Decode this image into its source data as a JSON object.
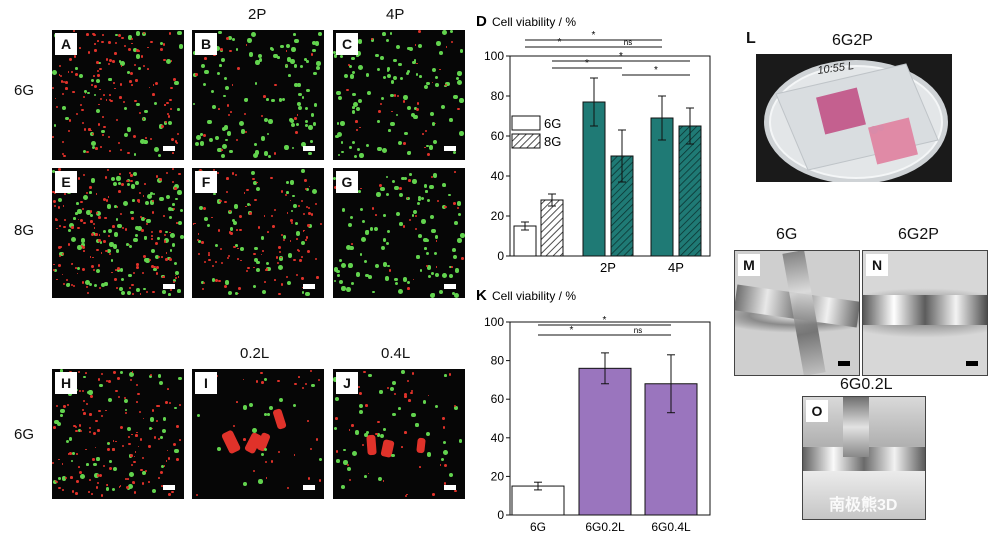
{
  "col_headers": {
    "p2": "2P",
    "p4": "4P",
    "l02": "0.2L",
    "l04": "0.4L"
  },
  "row_labels": {
    "r1": "6G",
    "r2": "8G",
    "r3": "6G"
  },
  "panels": {
    "A": "A",
    "B": "B",
    "C": "C",
    "E": "E",
    "F": "F",
    "G": "G",
    "H": "H",
    "I": "I",
    "J": "J",
    "M": "M",
    "N": "N",
    "O": "O"
  },
  "right": {
    "L_letter": "L",
    "L_title": "6G2P",
    "dish_label": "10:55 L",
    "M_title": "6G",
    "N_title": "6G2P",
    "O_title": "6G0.2L",
    "watermark": "南极熊3D"
  },
  "colors": {
    "teal": "#1f7a75",
    "purple": "#9a75be",
    "bg": "#060606",
    "red": "#e0322a",
    "green": "#62d34e"
  },
  "chart_data": [
    {
      "panel": "D",
      "type": "bar",
      "title": "Cell viability / %",
      "categories": [
        "",
        "2P",
        "4P"
      ],
      "ylim": [
        0,
        100
      ],
      "yticks": [
        0,
        20,
        40,
        60,
        80,
        100
      ],
      "series": [
        {
          "name": "6G",
          "values": [
            15,
            77,
            69
          ],
          "errors": [
            2,
            12,
            11
          ]
        },
        {
          "name": "8G",
          "values": [
            28,
            50,
            65
          ],
          "errors": [
            3,
            13,
            9
          ]
        }
      ],
      "legend": "left",
      "significance": [
        {
          "text": "*"
        },
        {
          "text": "*"
        },
        {
          "text": "ns"
        },
        {
          "text": "*"
        },
        {
          "text": "*"
        },
        {
          "text": "*"
        }
      ]
    },
    {
      "panel": "K",
      "type": "bar",
      "title": "Cell viability / %",
      "categories": [
        "6G",
        "6G0.2L",
        "6G0.4L"
      ],
      "ylim": [
        0,
        100
      ],
      "yticks": [
        0,
        20,
        40,
        60,
        80,
        100
      ],
      "values": [
        15,
        76,
        68
      ],
      "errors": [
        2,
        8,
        15
      ],
      "significance": [
        {
          "text": "*"
        },
        {
          "text": "*"
        },
        {
          "text": "ns"
        }
      ]
    }
  ]
}
